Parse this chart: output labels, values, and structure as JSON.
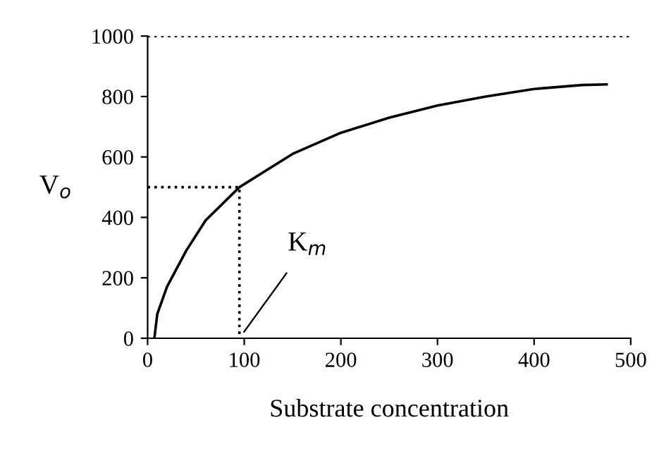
{
  "chart_data": {
    "type": "line",
    "xlabel": "Substrate concentration",
    "ylabel": "V$_{o}$",
    "series": [
      {
        "color": "#000000",
        "x": [
          7,
          10,
          20,
          40,
          60,
          95,
          150,
          200,
          250,
          300,
          350,
          400,
          450,
          475
        ],
        "values": [
          0,
          80,
          170,
          290,
          390,
          500,
          610,
          680,
          730,
          770,
          800,
          825,
          838,
          840
        ]
      },
      {
        "color": "#000000",
        "line_style": "dotted",
        "x": [
          0,
          95,
          95
        ],
        "values": [
          500,
          500,
          0
        ]
      }
    ],
    "ref_lines": [
      {
        "axis": "y",
        "value": 1000,
        "color": "#000000",
        "line_style": "dotted"
      }
    ],
    "annotations": [
      {
        "text": "K$_{m}$",
        "x": 95,
        "y": 0
      }
    ],
    "xlim": [
      0,
      500
    ],
    "xticks": [
      0,
      100,
      200,
      300,
      400,
      500
    ],
    "ylim": [
      0,
      1000
    ],
    "yticks": [
      0,
      200,
      400,
      600,
      800,
      1000
    ],
    "grid": false,
    "legend": false,
    "marker": "none",
    "line_style": "solid"
  }
}
